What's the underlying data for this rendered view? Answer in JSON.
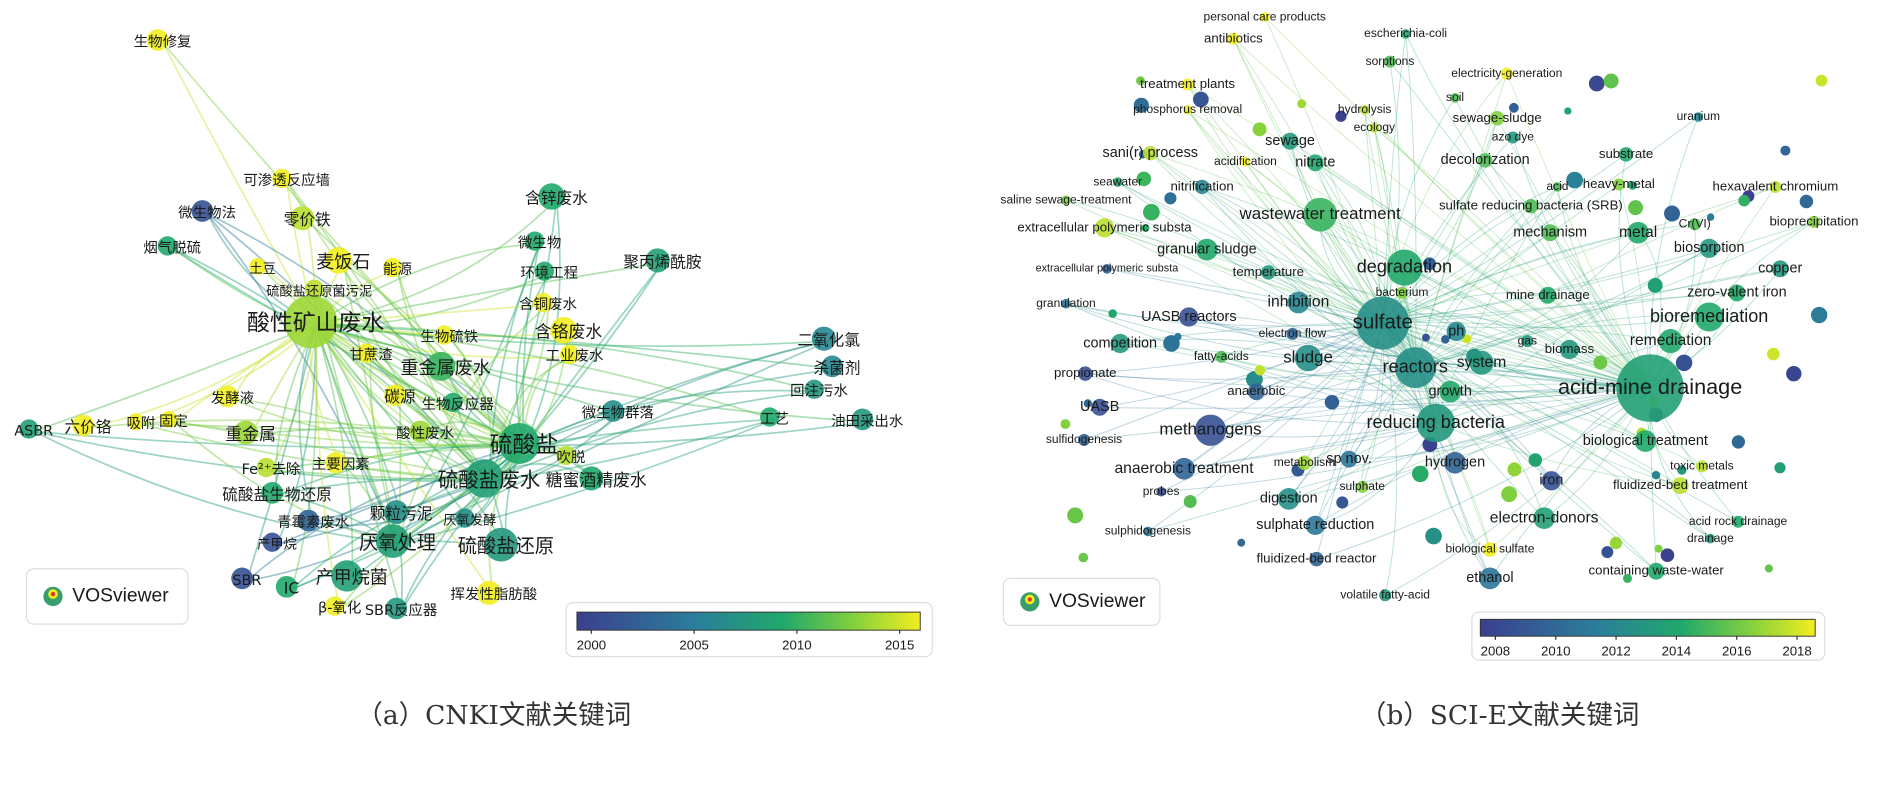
{
  "panels": [
    {
      "nodes": [
        "生物修复",
        "可渗透反应墙",
        "微生物法",
        "零价铁",
        "烟气脱硫",
        "麦饭石",
        "土豆",
        "能源",
        "硫酸盐还原菌污泥",
        "酸性矿山废水",
        "生物硫铁",
        "甘蔗渣",
        "重金属废水",
        "含锌废水",
        "微生物",
        "环境工程",
        "聚丙烯酰胺",
        "含铜废水",
        "含铬废水",
        "工业废水",
        "二氧化氯",
        "杀菌剂",
        "回注污水",
        "工艺",
        "油田采出水",
        "发酵液",
        "碳源",
        "生物反应器",
        "微生物群落",
        "ASBR",
        "六价铬",
        "吸附",
        "固定",
        "重金属",
        "酸性废水",
        "硫酸盐",
        "吹脱",
        "Fe²⁺去除",
        "主要因素",
        "硫酸盐废水",
        "糖蜜酒精废水",
        "硫酸盐生物还原",
        "颗粒污泥",
        "厌氧发酵",
        "青霉素废水",
        "厌氧处理",
        "产甲烷",
        "硫酸盐还原",
        "产甲烷菌",
        "SBR",
        "IC",
        "挥发性脂肪酸",
        "β-氧化",
        "SBR反应器"
      ],
      "colorbar": {
        "lim": [
          1999.3,
          2016
        ],
        "ticks": [
          2000,
          2005,
          2010,
          2015
        ]
      },
      "logo": "VOSviewer",
      "caption": "（a）CNKI文献关键词"
    },
    {
      "nodes": [
        "personal care products",
        "escherichia-coli",
        "antibiotics",
        "sorptions",
        "electricity-generation",
        "treatment plants",
        "soil",
        "hydrolysis",
        "phosphorus removal",
        "uranium",
        "sewage-sludge",
        "ecology",
        "azo dye",
        "sewage",
        "sani(r) process",
        "substrate",
        "acidification",
        "nitrate",
        "decolorization",
        "seawater",
        "acid",
        "heavy-metal",
        "hexavalent chromium",
        "nitrification",
        "saline sewage-treatment",
        "sulfate reducing bacteria (SRB)",
        "wastewater treatment",
        "Cr(VI)",
        "bioprecipitation",
        "extracellular polymeric substa",
        "mechanism",
        "metal",
        "biosorption",
        "granular sludge",
        "copper",
        "degradation",
        "extracellular polymeric substa",
        "temperature",
        "bacterium",
        "mine drainage",
        "zero-valent iron",
        "granulation",
        "inhibition",
        "bioremediation",
        "UASB reactors",
        "sulfate",
        "ph",
        "electron flow",
        "gas",
        "remediation",
        "competition",
        "biomass",
        "fatty-acids",
        "sludge",
        "system",
        "reactors",
        "propionate",
        "acid-mine drainage",
        "anaerobic",
        "growth",
        "UASB",
        "reducing bacteria",
        "methanogens",
        "sulfidogenesis",
        "biological treatment",
        "sp nov.",
        "metabolism",
        "hydrogen",
        "anaerobic treatment",
        "toxic metals",
        "iron",
        "fluidized-bed treatment",
        "probes",
        "sulphate",
        "digestion",
        "acid rock drainage",
        "electron-donors",
        "sulphate reduction",
        "sulphidogenesis",
        "drainage",
        "biological sulfate",
        "fluidized-bed reactor",
        "containing waste-water",
        "ethanol",
        "volatile fatty-acid"
      ],
      "colorbar": {
        "lim": [
          2007.5,
          2018.6
        ],
        "ticks": [
          2008,
          2010,
          2012,
          2014,
          2016,
          2018
        ]
      },
      "logo": "VOSviewer",
      "caption": "（b）SCI-E文献关键词"
    }
  ]
}
